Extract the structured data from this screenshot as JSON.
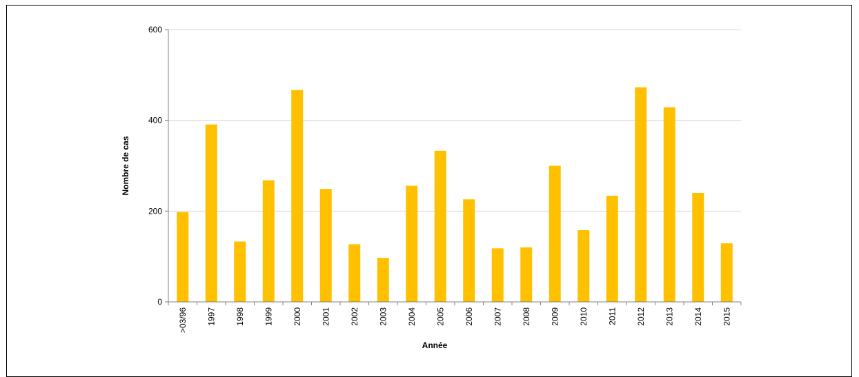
{
  "chart_data": {
    "type": "bar",
    "title": "",
    "xlabel": "Année",
    "ylabel": "Nombre de cas",
    "categories": [
      ">03/96",
      "1997",
      "1998",
      "1999",
      "2000",
      "2001",
      "2002",
      "2003",
      "2004",
      "2005",
      "2006",
      "2007",
      "2008",
      "2009",
      "2010",
      "2011",
      "2012",
      "2013",
      "2014",
      "2015"
    ],
    "values": [
      198,
      391,
      133,
      268,
      467,
      249,
      127,
      97,
      256,
      333,
      226,
      118,
      120,
      300,
      158,
      234,
      473,
      429,
      240,
      129
    ],
    "ylim": [
      0,
      600
    ],
    "yticks": [
      "0",
      "200",
      "400",
      "600"
    ],
    "grid": true,
    "legend": "none",
    "colors": {
      "bar": "#FFC000",
      "grid": "#D9D9D9",
      "axis": "#808080"
    }
  }
}
